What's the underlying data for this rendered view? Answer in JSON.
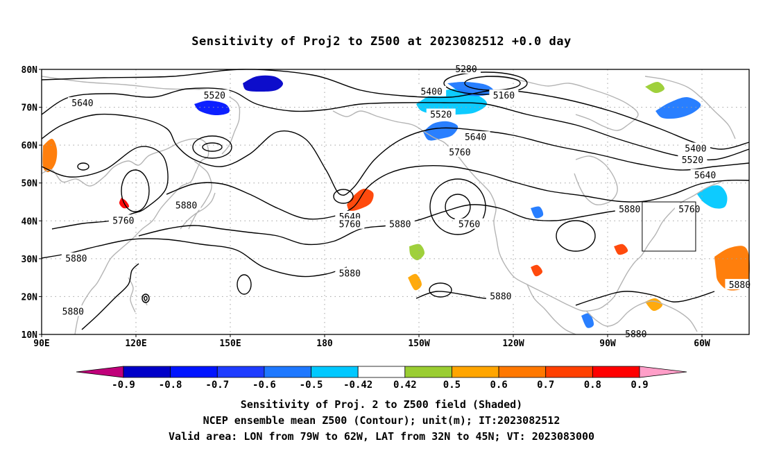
{
  "title": "Sensitivity of Proj2 to Z500 at 2023082512 +0.0 day",
  "map": {
    "lat_labels": [
      "80N",
      "70N",
      "60N",
      "50N",
      "40N",
      "30N",
      "20N",
      "10N"
    ],
    "lon_labels": [
      "90E",
      "120E",
      "150E",
      "180",
      "150W",
      "120W",
      "90W",
      "60W"
    ],
    "lon_range": [
      "90E",
      "45W"
    ],
    "lat_range": [
      "10N",
      "80N"
    ],
    "projection": "cylindrical equidistant",
    "grid": "dotted gray at every 10°"
  },
  "contour_labels": [
    {
      "text": "5640",
      "lon": 103,
      "lat": 71
    },
    {
      "text": "5520",
      "lon": 145,
      "lat": 73
    },
    {
      "text": "5400",
      "lon": 214,
      "lat": 74
    },
    {
      "text": "5280",
      "lon": 225,
      "lat": 80
    },
    {
      "text": "5160",
      "lon": 237,
      "lat": 73
    },
    {
      "text": "5520",
      "lon": 217,
      "lat": 68
    },
    {
      "text": "5640",
      "lon": 228,
      "lat": 62
    },
    {
      "text": "5760",
      "lon": 223,
      "lat": 58
    },
    {
      "text": "5400",
      "lon": 298,
      "lat": 59
    },
    {
      "text": "5520",
      "lon": 297,
      "lat": 56
    },
    {
      "text": "5640",
      "lon": 301,
      "lat": 52
    },
    {
      "text": "5880",
      "lon": 136,
      "lat": 44
    },
    {
      "text": "5760",
      "lon": 116,
      "lat": 40
    },
    {
      "text": "5640",
      "lon": 188,
      "lat": 41
    },
    {
      "text": "5760",
      "lon": 188,
      "lat": 39
    },
    {
      "text": "5880",
      "lon": 204,
      "lat": 39
    },
    {
      "text": "5760",
      "lon": 226,
      "lat": 39
    },
    {
      "text": "5880",
      "lon": 277,
      "lat": 43
    },
    {
      "text": "5760",
      "lon": 296,
      "lat": 43
    },
    {
      "text": "5880",
      "lon": 101,
      "lat": 30
    },
    {
      "text": "5880",
      "lon": 188,
      "lat": 26
    },
    {
      "text": "5880",
      "lon": 236,
      "lat": 20
    },
    {
      "text": "5880",
      "lon": 312,
      "lat": 23
    },
    {
      "text": "5880",
      "lon": 100,
      "lat": 16
    },
    {
      "text": "5880",
      "lon": 279,
      "lat": 10
    }
  ],
  "valid_area": {
    "lon": [
      "79W",
      "62W"
    ],
    "lat": [
      "32N",
      "45N"
    ]
  },
  "colorbar": {
    "labels": [
      "-0.9",
      "-0.8",
      "-0.7",
      "-0.6",
      "-0.5",
      "-0.42",
      "0.42",
      "0.5",
      "0.6",
      "0.7",
      "0.8",
      "0.9"
    ],
    "colors": [
      "#c0007a",
      "#0000c8",
      "#0014ff",
      "#1e3cff",
      "#1e78ff",
      "#00c8ff",
      "#ffffff",
      "#9acd32",
      "#ffa500",
      "#ff7800",
      "#ff4000",
      "#ff0000",
      "#ff9ec8"
    ]
  },
  "footer": {
    "line1": "Sensitivity of Proj. 2 to Z500 field (Shaded)",
    "line2": "NCEP ensemble mean Z500 (Contour); unit(m); IT:2023082512",
    "line3": "Valid area: LON from 79W to 62W, LAT from 32N to 45N; VT: 2023083000"
  },
  "colors": {
    "coast": "#b4b4b4",
    "contour": "#000000",
    "grid": "#a0a0a0"
  }
}
